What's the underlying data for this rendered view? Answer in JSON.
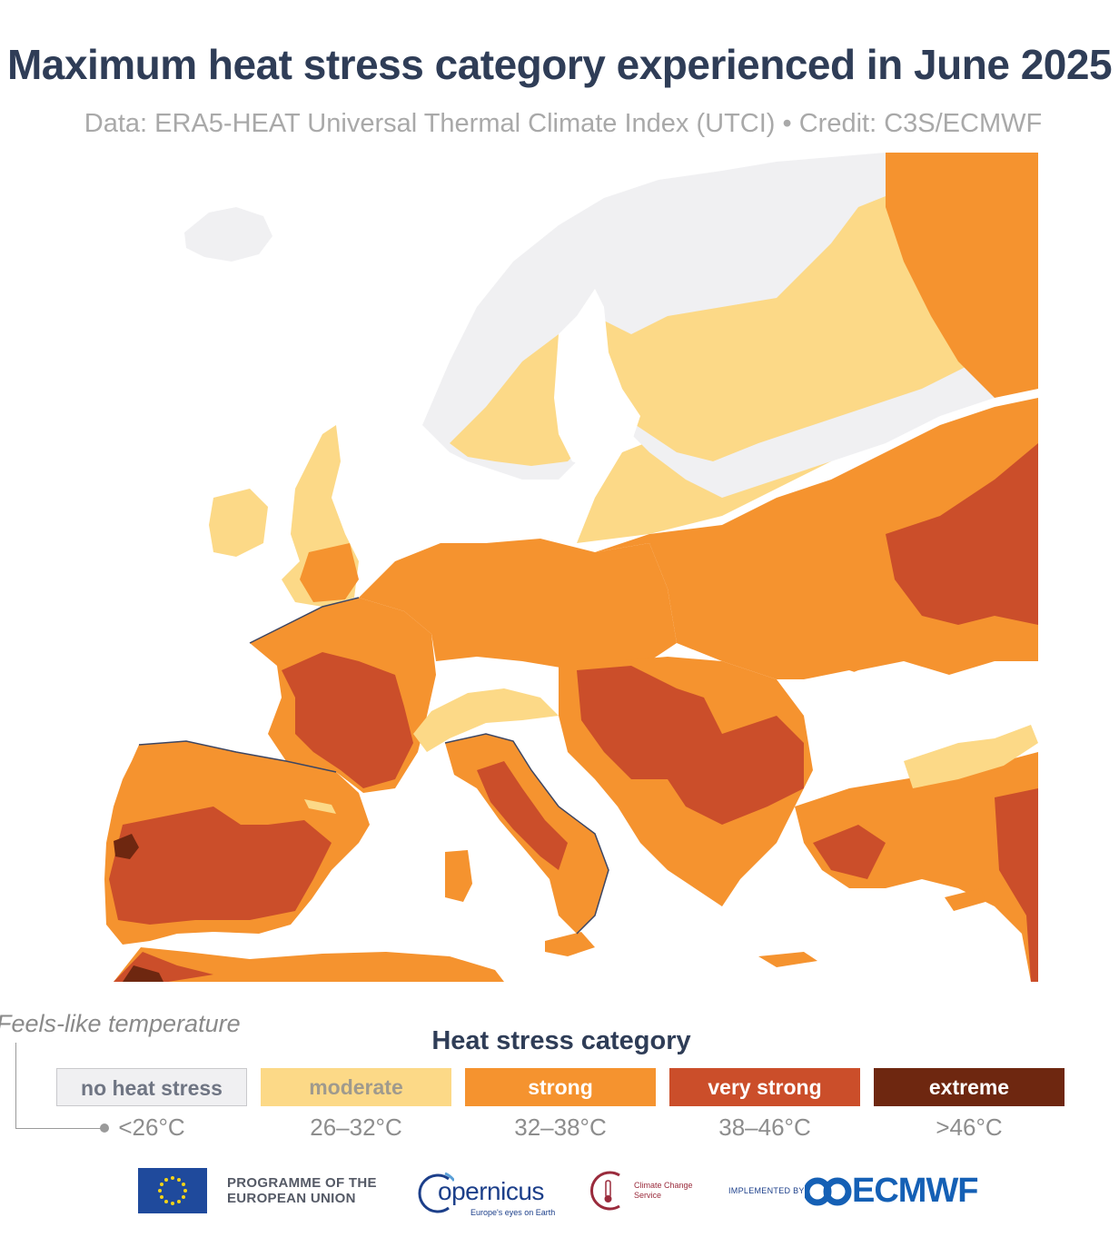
{
  "header": {
    "title": "Maximum heat stress category experienced in June 2025",
    "subtitle": "Data: ERA5-HEAT Universal Thermal Climate Index (UTCI) • Credit: C3S/ECMWF"
  },
  "legend": {
    "feels_like_label": "Feels-like temperature",
    "title": "Heat stress category",
    "categories": [
      {
        "label": "no heat stress",
        "range": "<26°C",
        "color": "#f0f0f2",
        "text_color": "#6f7583"
      },
      {
        "label": "moderate",
        "range": "26–32°C",
        "color": "#fcd987",
        "text_color": "#9f9a8e"
      },
      {
        "label": "strong",
        "range": "32–38°C",
        "color": "#f5932f",
        "text_color": "#ffffff"
      },
      {
        "label": "very strong",
        "range": "38–46°C",
        "color": "#cb4e2a",
        "text_color": "#ffffff"
      },
      {
        "label": "extreme",
        "range": ">46°C",
        "color": "#6e2710",
        "text_color": "#ffffff"
      }
    ]
  },
  "map": {
    "region": "Europe",
    "sea_color": "#ffffff",
    "coast_color": "#3d4662"
  },
  "footer": {
    "eu_programme": "PROGRAMME OF THE EUROPEAN UNION",
    "copernicus_name": "opernicus",
    "copernicus_tagline": "Europe's eyes on Earth",
    "c3s_name": "Climate Change Service",
    "implemented_by": "IMPLEMENTED BY",
    "ecmwf": "ECMWF"
  }
}
